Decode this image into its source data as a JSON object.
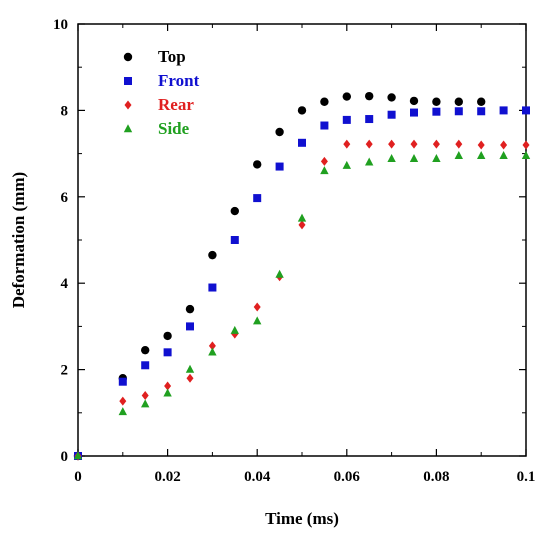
{
  "chart_data": {
    "type": "scatter",
    "xlabel": "Time (ms)",
    "ylabel": "Deformation (mm)",
    "xlim": [
      0,
      0.1
    ],
    "ylim": [
      0,
      10
    ],
    "x_ticks": [
      0,
      0.02,
      0.04,
      0.06,
      0.08,
      0.1
    ],
    "x_tick_labels": [
      "0",
      "0.02",
      "0.04",
      "0.06",
      "0.08",
      "0.1"
    ],
    "y_ticks": [
      0,
      2,
      4,
      6,
      8,
      10
    ],
    "y_tick_labels": [
      "0",
      "2",
      "4",
      "6",
      "8",
      "10"
    ],
    "grid": false,
    "legend_position": "top-left",
    "series": [
      {
        "name": "Top",
        "marker": "circle",
        "color": "#000000",
        "points": [
          [
            0,
            0
          ],
          [
            0.01,
            1.8
          ],
          [
            0.015,
            2.45
          ],
          [
            0.02,
            2.78
          ],
          [
            0.025,
            3.4
          ],
          [
            0.03,
            4.65
          ],
          [
            0.035,
            5.67
          ],
          [
            0.04,
            6.75
          ],
          [
            0.045,
            7.5
          ],
          [
            0.05,
            8.0
          ],
          [
            0.055,
            8.2
          ],
          [
            0.06,
            8.32
          ],
          [
            0.065,
            8.33
          ],
          [
            0.07,
            8.3
          ],
          [
            0.075,
            8.22
          ],
          [
            0.08,
            8.2
          ],
          [
            0.085,
            8.2
          ],
          [
            0.09,
            8.2
          ]
        ]
      },
      {
        "name": "Front",
        "marker": "square",
        "color": "#1010d0",
        "points": [
          [
            0,
            0
          ],
          [
            0.01,
            1.72
          ],
          [
            0.015,
            2.1
          ],
          [
            0.02,
            2.4
          ],
          [
            0.025,
            3.0
          ],
          [
            0.03,
            3.9
          ],
          [
            0.035,
            5.0
          ],
          [
            0.04,
            5.97
          ],
          [
            0.045,
            6.7
          ],
          [
            0.05,
            7.25
          ],
          [
            0.055,
            7.65
          ],
          [
            0.06,
            7.78
          ],
          [
            0.065,
            7.8
          ],
          [
            0.07,
            7.9
          ],
          [
            0.075,
            7.95
          ],
          [
            0.08,
            7.97
          ],
          [
            0.085,
            7.98
          ],
          [
            0.09,
            7.98
          ],
          [
            0.095,
            8.0
          ],
          [
            0.1,
            8.0
          ]
        ]
      },
      {
        "name": "Rear",
        "marker": "diamond",
        "color": "#e02020",
        "points": [
          [
            0,
            0
          ],
          [
            0.01,
            1.27
          ],
          [
            0.015,
            1.4
          ],
          [
            0.02,
            1.62
          ],
          [
            0.025,
            1.8
          ],
          [
            0.03,
            2.55
          ],
          [
            0.035,
            2.82
          ],
          [
            0.04,
            3.45
          ],
          [
            0.045,
            4.15
          ],
          [
            0.05,
            5.35
          ],
          [
            0.055,
            6.82
          ],
          [
            0.06,
            7.22
          ],
          [
            0.065,
            7.22
          ],
          [
            0.07,
            7.22
          ],
          [
            0.075,
            7.22
          ],
          [
            0.08,
            7.22
          ],
          [
            0.085,
            7.22
          ],
          [
            0.09,
            7.2
          ],
          [
            0.095,
            7.2
          ],
          [
            0.1,
            7.2
          ]
        ]
      },
      {
        "name": "Side",
        "marker": "triangle",
        "color": "#20a020",
        "points": [
          [
            0,
            0
          ],
          [
            0.01,
            1.02
          ],
          [
            0.015,
            1.2
          ],
          [
            0.02,
            1.45
          ],
          [
            0.025,
            2.0
          ],
          [
            0.03,
            2.4
          ],
          [
            0.035,
            2.9
          ],
          [
            0.04,
            3.12
          ],
          [
            0.045,
            4.2
          ],
          [
            0.05,
            5.5
          ],
          [
            0.055,
            6.6
          ],
          [
            0.06,
            6.72
          ],
          [
            0.065,
            6.8
          ],
          [
            0.07,
            6.88
          ],
          [
            0.075,
            6.88
          ],
          [
            0.08,
            6.88
          ],
          [
            0.085,
            6.95
          ],
          [
            0.09,
            6.95
          ],
          [
            0.095,
            6.95
          ],
          [
            0.1,
            6.95
          ]
        ]
      }
    ]
  }
}
